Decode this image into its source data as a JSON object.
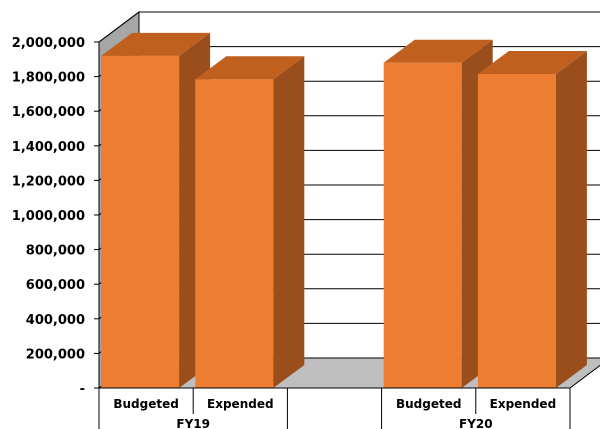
{
  "chart_data": {
    "type": "bar",
    "three_d": true,
    "groups": [
      {
        "label": "FY19",
        "categories": [
          "Budgeted",
          "Expended"
        ],
        "values": [
          1920000,
          1785000
        ]
      },
      {
        "label": "FY20",
        "categories": [
          "Budgeted",
          "Expended"
        ],
        "values": [
          1880000,
          1815000
        ]
      }
    ],
    "ylim": [
      0,
      2000000
    ],
    "yticks": [
      0,
      200000,
      400000,
      600000,
      800000,
      1000000,
      1200000,
      1400000,
      1600000,
      1800000,
      2000000
    ],
    "ytick_labels": [
      "-",
      "200,000",
      "400,000",
      "600,000",
      "800,000",
      "1,000,000",
      "1,200,000",
      "1,400,000",
      "1,600,000",
      "1,800,000",
      "2,000,000"
    ],
    "grid": true,
    "legend": "none",
    "title": "",
    "xlabel": "",
    "ylabel": "",
    "colors": {
      "bar_front": "#ED7D31",
      "bar_side": "#9A4E1C",
      "bar_top": "#C0601F",
      "wall": "#A6A6A6",
      "floor": "#BFBFBF",
      "grid": "#000000"
    }
  }
}
